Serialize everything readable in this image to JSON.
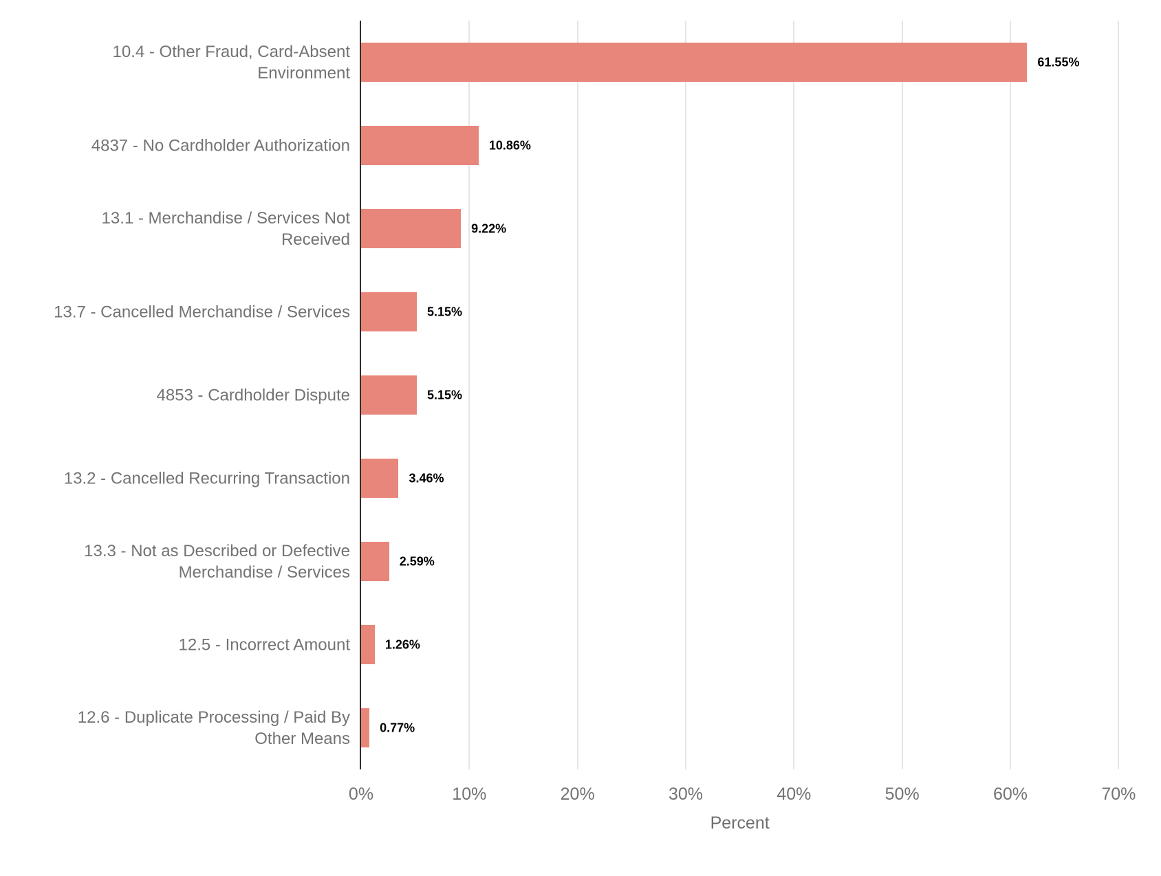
{
  "chart_data": {
    "type": "bar",
    "orientation": "horizontal",
    "title": "",
    "xlabel": "Percent",
    "ylabel": "",
    "categories": [
      "10.4 - Other Fraud, Card-Absent\nEnvironment",
      "4837 - No Cardholder Authorization",
      "13.1 - Merchandise / Services Not\nReceived",
      "13.7 - Cancelled Merchandise / Services",
      "4853 - Cardholder Dispute",
      "13.2 - Cancelled Recurring Transaction",
      "13.3 - Not as Described or Defective\nMerchandise / Services",
      "12.5 - Incorrect Amount",
      "12.6 - Duplicate Processing / Paid By\nOther Means"
    ],
    "values": [
      61.55,
      10.86,
      9.22,
      5.15,
      5.15,
      3.46,
      2.59,
      1.26,
      0.77
    ],
    "value_labels": [
      "61.55%",
      "10.86%",
      "9.22%",
      "5.15%",
      "5.15%",
      "3.46%",
      "2.59%",
      "1.26%",
      "0.77%"
    ],
    "x_ticks": [
      {
        "value": 0,
        "label": "0%"
      },
      {
        "value": 10,
        "label": "10%"
      },
      {
        "value": 20,
        "label": "20%"
      },
      {
        "value": 30,
        "label": "30%"
      },
      {
        "value": 40,
        "label": "40%"
      },
      {
        "value": 50,
        "label": "50%"
      },
      {
        "value": 60,
        "label": "60%"
      },
      {
        "value": 70,
        "label": "70%"
      }
    ],
    "xlim": [
      0,
      73.6
    ],
    "grid": "vertical-major",
    "legend": "none",
    "colors": {
      "bar": "#E8867B",
      "axis_line": "#2E2E2E",
      "gridline": "#E5E5E5",
      "category_label": "#737373",
      "tick_label": "#737373",
      "axis_title": "#6E6E6E",
      "value_label": "#000000",
      "background": "#FFFFFF"
    }
  }
}
